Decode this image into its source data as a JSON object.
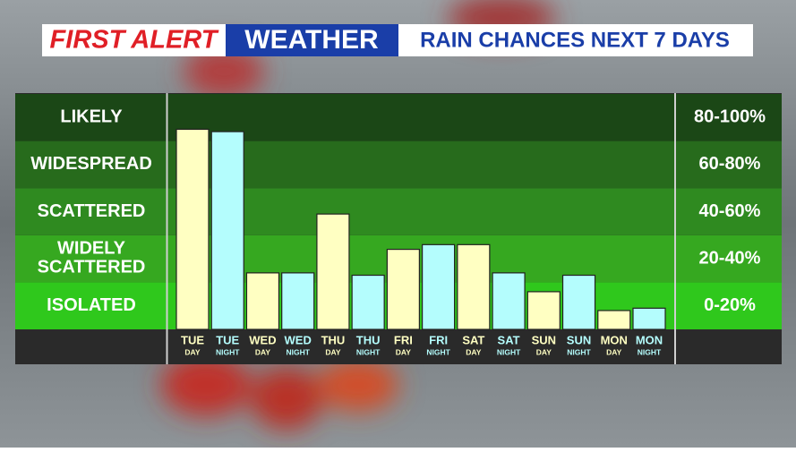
{
  "chart_data": {
    "type": "bar",
    "header": {
      "brand": "FIRST ALERT",
      "section": "WEATHER",
      "title": "RAIN CHANCES NEXT 7 DAYS"
    },
    "categories": [
      "TUE",
      "TUE",
      "WED",
      "WED",
      "THU",
      "THU",
      "FRI",
      "FRI",
      "SAT",
      "SAT",
      "SUN",
      "SUN",
      "MON",
      "MON"
    ],
    "category_sublabels": [
      "DAY",
      "NIGHT",
      "DAY",
      "NIGHT",
      "DAY",
      "NIGHT",
      "DAY",
      "NIGHT",
      "DAY",
      "NIGHT",
      "DAY",
      "NIGHT",
      "DAY",
      "NIGHT"
    ],
    "values": [
      85,
      84,
      24,
      24,
      49,
      23,
      34,
      36,
      36,
      24,
      16,
      23,
      8,
      9
    ],
    "bar_colors": [
      "#ffffc2",
      "#b4fdfd",
      "#ffffc2",
      "#b4fdfd",
      "#ffffc2",
      "#b4fdfd",
      "#ffffc2",
      "#b4fdfd",
      "#ffffc2",
      "#b4fdfd",
      "#ffffc2",
      "#b4fdfd",
      "#ffffc2",
      "#b4fdfd"
    ],
    "ylim": [
      0,
      100
    ],
    "yticks": [
      0,
      20,
      40,
      60,
      80,
      100
    ],
    "bands": [
      {
        "label": "ISOLATED",
        "range": "0-20%",
        "color": "#2fc81c"
      },
      {
        "label": "WIDELY SCATTERED",
        "range": "20-40%",
        "color": "#36a820"
      },
      {
        "label": "SCATTERED",
        "range": "40-60%",
        "color": "#2f8a20"
      },
      {
        "label": "WIDESPREAD",
        "range": "60-80%",
        "color": "#276b1c"
      },
      {
        "label": "LIKELY",
        "range": "80-100%",
        "color": "#1b4716"
      }
    ]
  }
}
